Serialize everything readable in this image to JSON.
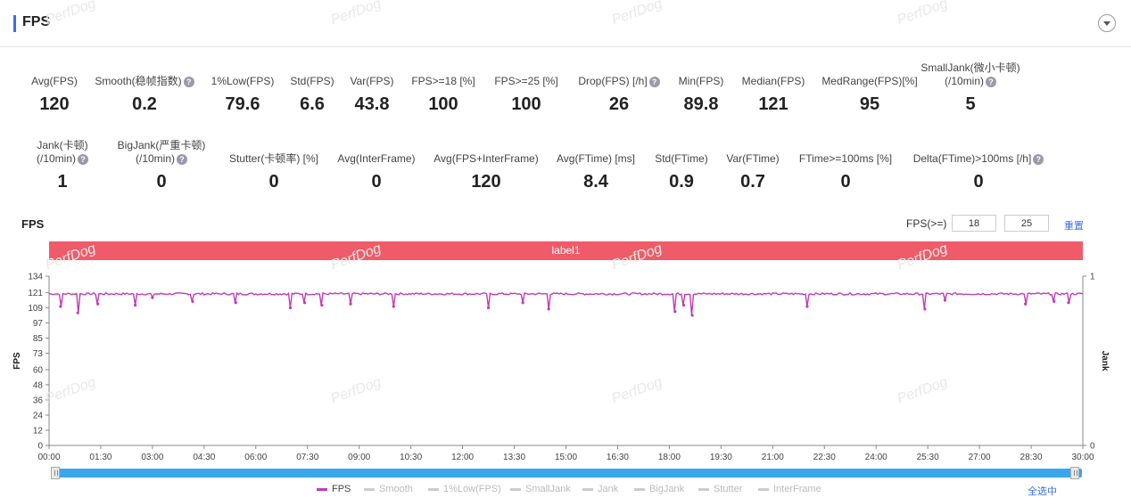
{
  "section": {
    "title": "FPS"
  },
  "row1": [
    {
      "label": "Avg(FPS)",
      "value": "120",
      "help": false
    },
    {
      "label": "Smooth(稳帧指数)",
      "value": "0.2",
      "help": true
    },
    {
      "label": "1%Low(FPS)",
      "value": "79.6",
      "help": false
    },
    {
      "label": "Std(FPS)",
      "value": "6.6",
      "help": false
    },
    {
      "label": "Var(FPS)",
      "value": "43.8",
      "help": false
    },
    {
      "label": "FPS>=18 [%]",
      "value": "100",
      "help": false
    },
    {
      "label": "FPS>=25 [%]",
      "value": "100",
      "help": false
    },
    {
      "label": "Drop(FPS) [/h]",
      "value": "26",
      "help": true
    },
    {
      "label": "Min(FPS)",
      "value": "89.8",
      "help": false
    },
    {
      "label": "Median(FPS)",
      "value": "121",
      "help": false
    },
    {
      "label": "MedRange(FPS)[%]",
      "value": "95",
      "help": false
    },
    {
      "label": "SmallJank(微小卡顿)",
      "label2": "(/10min)",
      "value": "5",
      "help": true
    }
  ],
  "row2": [
    {
      "label": "Jank(卡顿)",
      "label2": "(/10min)",
      "value": "1",
      "help": true
    },
    {
      "label": "BigJank(严重卡顿)",
      "label2": "(/10min)",
      "value": "0",
      "help": true
    },
    {
      "label": "Stutter(卡顿率) [%]",
      "value": "0",
      "help": false
    },
    {
      "label": "Avg(InterFrame)",
      "value": "0",
      "help": false
    },
    {
      "label": "Avg(FPS+InterFrame)",
      "value": "120",
      "help": false
    },
    {
      "label": "Avg(FTime) [ms]",
      "value": "8.4",
      "help": false
    },
    {
      "label": "Std(FTime)",
      "value": "0.9",
      "help": false
    },
    {
      "label": "Var(FTime)",
      "value": "0.7",
      "help": false
    },
    {
      "label": "FTime>=100ms [%]",
      "value": "0",
      "help": false
    },
    {
      "label": "Delta(FTime)>100ms [/h]",
      "value": "0",
      "help": true
    }
  ],
  "chart": {
    "title": "FPS",
    "threshold_label": "FPS(>=)",
    "threshold_1": "18",
    "threshold_2": "25",
    "reset_label": "重置",
    "band_label": "label1",
    "select_all_label": "全选中",
    "legend": [
      {
        "name": "FPS",
        "active": true
      },
      {
        "name": "Smooth",
        "active": false
      },
      {
        "name": "1%Low(FPS)",
        "active": false
      },
      {
        "name": "SmallJank",
        "active": false
      },
      {
        "name": "Jank",
        "active": false
      },
      {
        "name": "BigJank",
        "active": false
      },
      {
        "name": "Stutter",
        "active": false
      },
      {
        "name": "InterFrame",
        "active": false
      }
    ],
    "series_color": "#c03cb8",
    "watermark": "PerfDog"
  },
  "chart_data": {
    "type": "line",
    "title": "",
    "xlabel": "",
    "ylabel": "FPS",
    "y2label": "Jank",
    "xlim": [
      0,
      1800
    ],
    "ylim": [
      0,
      134
    ],
    "y_ticks": [
      0,
      12,
      24,
      36,
      48,
      60,
      73,
      85,
      97,
      109,
      121,
      134
    ],
    "y2_ticks": [
      0,
      1
    ],
    "x_tick_labels": [
      "00:00",
      "01:30",
      "03:00",
      "04:30",
      "06:00",
      "07:30",
      "09:00",
      "10:30",
      "12:00",
      "13:30",
      "15:00",
      "16:30",
      "18:00",
      "19:30",
      "21:00",
      "22:30",
      "24:00",
      "25:30",
      "27:00",
      "28:30",
      "30:00"
    ],
    "baseline": 120,
    "dips": [
      {
        "t": 20,
        "v": 110
      },
      {
        "t": 50,
        "v": 105
      },
      {
        "t": 85,
        "v": 112
      },
      {
        "t": 150,
        "v": 111
      },
      {
        "t": 180,
        "v": 117
      },
      {
        "t": 250,
        "v": 114
      },
      {
        "t": 325,
        "v": 113
      },
      {
        "t": 420,
        "v": 109
      },
      {
        "t": 445,
        "v": 113
      },
      {
        "t": 475,
        "v": 111
      },
      {
        "t": 525,
        "v": 112
      },
      {
        "t": 600,
        "v": 110
      },
      {
        "t": 765,
        "v": 109
      },
      {
        "t": 825,
        "v": 113
      },
      {
        "t": 870,
        "v": 108
      },
      {
        "t": 1090,
        "v": 106
      },
      {
        "t": 1105,
        "v": 111
      },
      {
        "t": 1120,
        "v": 103
      },
      {
        "t": 1320,
        "v": 110
      },
      {
        "t": 1525,
        "v": 108
      },
      {
        "t": 1560,
        "v": 115
      },
      {
        "t": 1700,
        "v": 112
      },
      {
        "t": 1750,
        "v": 114
      },
      {
        "t": 1775,
        "v": 113
      }
    ]
  }
}
